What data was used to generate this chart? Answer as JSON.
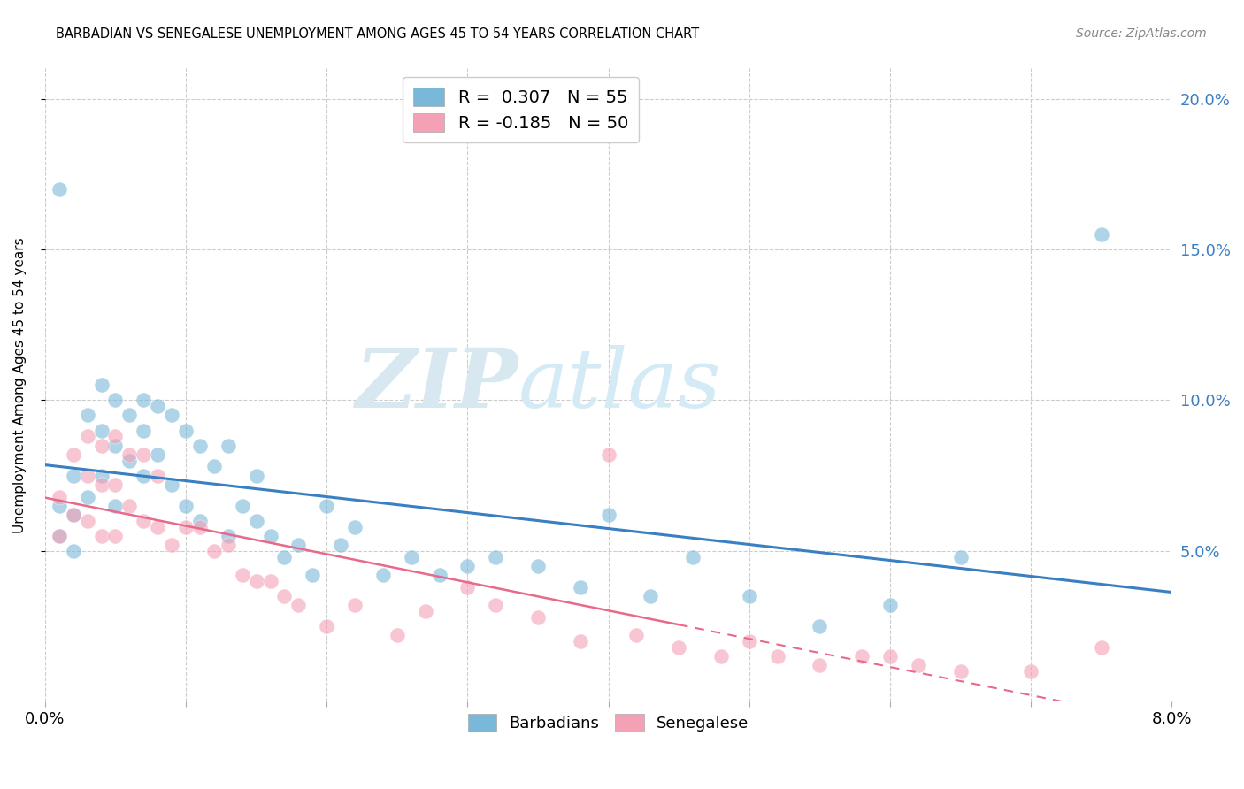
{
  "title": "BARBADIAN VS SENEGALESE UNEMPLOYMENT AMONG AGES 45 TO 54 YEARS CORRELATION CHART",
  "source": "Source: ZipAtlas.com",
  "ylabel": "Unemployment Among Ages 45 to 54 years",
  "xlim": [
    0.0,
    0.08
  ],
  "ylim": [
    0.0,
    0.21
  ],
  "yticks_right": [
    0.05,
    0.1,
    0.15,
    0.2
  ],
  "ytick_labels_right": [
    "5.0%",
    "10.0%",
    "15.0%",
    "20.0%"
  ],
  "barbadian_color": "#7ab8d9",
  "senegalese_color": "#f4a0b5",
  "barbadian_R": 0.307,
  "barbadian_N": 55,
  "senegalese_R": -0.185,
  "senegalese_N": 50,
  "barbadian_x": [
    0.001,
    0.001,
    0.001,
    0.002,
    0.002,
    0.002,
    0.003,
    0.003,
    0.004,
    0.004,
    0.004,
    0.005,
    0.005,
    0.005,
    0.006,
    0.006,
    0.007,
    0.007,
    0.007,
    0.008,
    0.008,
    0.009,
    0.009,
    0.01,
    0.01,
    0.011,
    0.011,
    0.012,
    0.013,
    0.013,
    0.014,
    0.015,
    0.015,
    0.016,
    0.017,
    0.018,
    0.019,
    0.02,
    0.021,
    0.022,
    0.024,
    0.026,
    0.028,
    0.03,
    0.032,
    0.035,
    0.038,
    0.04,
    0.043,
    0.046,
    0.05,
    0.055,
    0.06,
    0.065,
    0.075
  ],
  "barbadian_y": [
    0.17,
    0.065,
    0.055,
    0.075,
    0.062,
    0.05,
    0.095,
    0.068,
    0.105,
    0.09,
    0.075,
    0.1,
    0.085,
    0.065,
    0.095,
    0.08,
    0.1,
    0.09,
    0.075,
    0.098,
    0.082,
    0.095,
    0.072,
    0.09,
    0.065,
    0.085,
    0.06,
    0.078,
    0.085,
    0.055,
    0.065,
    0.075,
    0.06,
    0.055,
    0.048,
    0.052,
    0.042,
    0.065,
    0.052,
    0.058,
    0.042,
    0.048,
    0.042,
    0.045,
    0.048,
    0.045,
    0.038,
    0.062,
    0.035,
    0.048,
    0.035,
    0.025,
    0.032,
    0.048,
    0.155
  ],
  "senegalese_x": [
    0.001,
    0.001,
    0.002,
    0.002,
    0.003,
    0.003,
    0.003,
    0.004,
    0.004,
    0.004,
    0.005,
    0.005,
    0.005,
    0.006,
    0.006,
    0.007,
    0.007,
    0.008,
    0.008,
    0.009,
    0.01,
    0.011,
    0.012,
    0.013,
    0.014,
    0.015,
    0.016,
    0.017,
    0.018,
    0.02,
    0.022,
    0.025,
    0.027,
    0.03,
    0.032,
    0.035,
    0.038,
    0.04,
    0.042,
    0.045,
    0.048,
    0.05,
    0.052,
    0.055,
    0.058,
    0.06,
    0.062,
    0.065,
    0.07,
    0.075
  ],
  "senegalese_y": [
    0.068,
    0.055,
    0.082,
    0.062,
    0.088,
    0.075,
    0.06,
    0.085,
    0.072,
    0.055,
    0.088,
    0.072,
    0.055,
    0.082,
    0.065,
    0.082,
    0.06,
    0.075,
    0.058,
    0.052,
    0.058,
    0.058,
    0.05,
    0.052,
    0.042,
    0.04,
    0.04,
    0.035,
    0.032,
    0.025,
    0.032,
    0.022,
    0.03,
    0.038,
    0.032,
    0.028,
    0.02,
    0.082,
    0.022,
    0.018,
    0.015,
    0.02,
    0.015,
    0.012,
    0.015,
    0.015,
    0.012,
    0.01,
    0.01,
    0.018
  ],
  "watermark_zip": "ZIP",
  "watermark_atlas": "atlas",
  "background_color": "#ffffff",
  "grid_color": "#cccccc",
  "trend_blue": "#3a7fc1",
  "trend_pink": "#e8698a",
  "legend_R_blue": "#3a7fc1",
  "legend_R_pink": "#e8698a",
  "legend_N_blue": "#3a7fc1",
  "legend_N_pink": "#3a7fc1"
}
